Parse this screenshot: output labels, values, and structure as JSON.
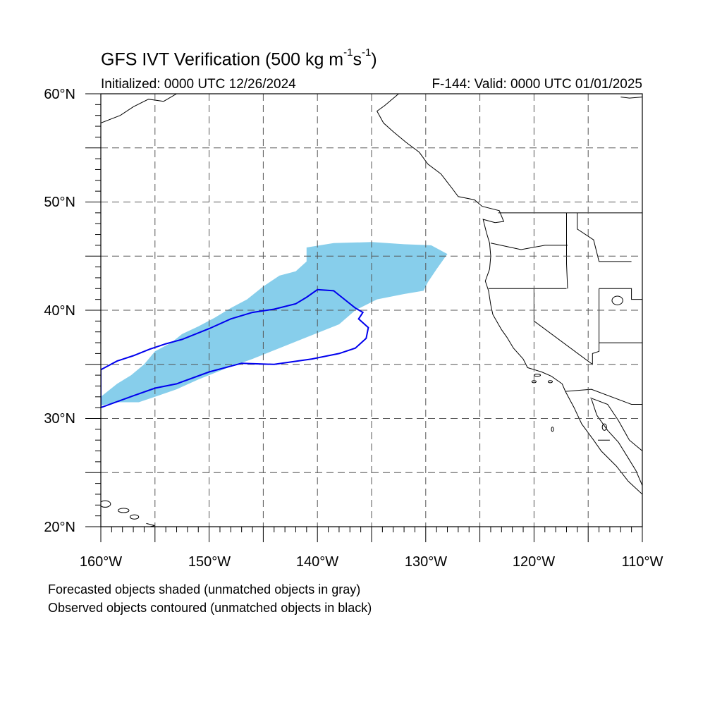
{
  "header": {
    "title_main": "GFS IVT Verification (500 kg m",
    "title_exp1": "-1",
    "title_mid": "s",
    "title_exp2": "-1",
    "title_end": ")",
    "initialized": "Initialized: 0000 UTC 12/26/2024",
    "valid": "F-144: Valid: 0000 UTC 01/01/2025"
  },
  "axes": {
    "lat_labels": [
      "60°N",
      "50°N",
      "40°N",
      "30°N",
      "20°N"
    ],
    "lon_labels": [
      "160°W",
      "150°W",
      "140°W",
      "130°W",
      "120°W",
      "110°W"
    ],
    "lat_range": [
      20,
      60
    ],
    "lon_range": [
      -160,
      -110
    ],
    "grid": "dashed every 5°"
  },
  "legend_notes": [
    "Forecasted objects shaded (unmatched objects in gray)",
    "Observed objects contoured (unmatched objects in black)"
  ],
  "colors": {
    "forecast_fill": "#87ceeb",
    "observed_contour": "#0000ee",
    "coastline": "#000000",
    "grid": "#555555"
  },
  "forecast_object_lonlat": [
    [
      -160.0,
      32.0
    ],
    [
      -158.5,
      33.2
    ],
    [
      -157.2,
      34.0
    ],
    [
      -156.0,
      35.0
    ],
    [
      -155.0,
      36.2
    ],
    [
      -153.5,
      37.0
    ],
    [
      -152.5,
      37.8
    ],
    [
      -151.0,
      38.5
    ],
    [
      -149.5,
      39.3
    ],
    [
      -148.0,
      40.2
    ],
    [
      -146.5,
      41.0
    ],
    [
      -145.0,
      42.2
    ],
    [
      -143.5,
      43.2
    ],
    [
      -142.0,
      43.6
    ],
    [
      -141.0,
      44.5
    ],
    [
      -141.0,
      45.8
    ],
    [
      -138.5,
      46.2
    ],
    [
      -135.0,
      46.3
    ],
    [
      -132.0,
      46.1
    ],
    [
      -129.5,
      46.0
    ],
    [
      -128.0,
      45.2
    ],
    [
      -129.0,
      43.8
    ],
    [
      -129.8,
      42.6
    ],
    [
      -130.2,
      41.8
    ],
    [
      -132.0,
      41.5
    ],
    [
      -134.5,
      41.0
    ],
    [
      -136.5,
      40.0
    ],
    [
      -138.0,
      38.7
    ],
    [
      -141.0,
      37.5
    ],
    [
      -143.5,
      36.5
    ],
    [
      -146.0,
      35.5
    ],
    [
      -148.5,
      34.6
    ],
    [
      -151.0,
      33.6
    ],
    [
      -153.0,
      32.7
    ],
    [
      -155.0,
      32.0
    ],
    [
      -156.5,
      31.5
    ],
    [
      -158.5,
      31.5
    ],
    [
      -160.0,
      31.2
    ]
  ],
  "observed_object_lonlat": [
    [
      -160.0,
      34.5
    ],
    [
      -158.5,
      35.3
    ],
    [
      -157.0,
      35.8
    ],
    [
      -155.5,
      36.4
    ],
    [
      -154.0,
      36.9
    ],
    [
      -152.5,
      37.3
    ],
    [
      -150.0,
      38.3
    ],
    [
      -148.0,
      39.2
    ],
    [
      -146.0,
      39.8
    ],
    [
      -144.0,
      40.1
    ],
    [
      -142.0,
      40.6
    ],
    [
      -141.0,
      41.2
    ],
    [
      -140.0,
      41.9
    ],
    [
      -138.5,
      41.8
    ],
    [
      -137.5,
      41.0
    ],
    [
      -136.5,
      40.2
    ],
    [
      -135.8,
      39.8
    ],
    [
      -136.2,
      39.2
    ],
    [
      -135.3,
      38.4
    ],
    [
      -135.5,
      37.4
    ],
    [
      -136.5,
      36.5
    ],
    [
      -138.0,
      36.0
    ],
    [
      -140.5,
      35.5
    ],
    [
      -144.0,
      35.0
    ],
    [
      -147.0,
      35.1
    ],
    [
      -150.0,
      34.3
    ],
    [
      -153.0,
      33.2
    ],
    [
      -155.0,
      32.8
    ],
    [
      -157.0,
      32.1
    ],
    [
      -160.0,
      31.0
    ]
  ]
}
